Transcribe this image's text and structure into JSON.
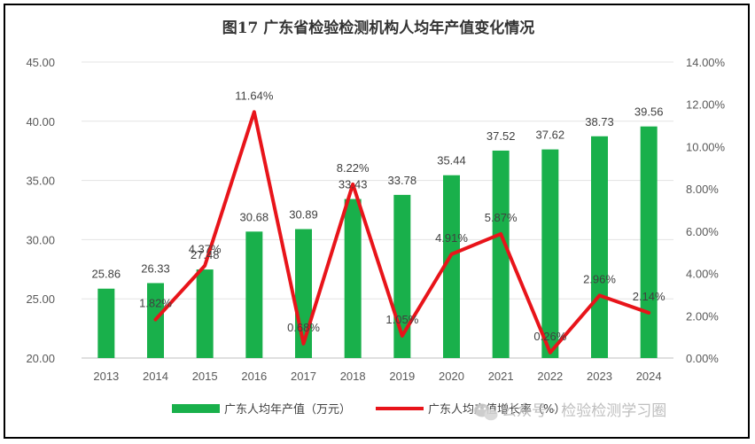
{
  "chart_data": {
    "type": "bar",
    "title": "图17  广东省检验检测机构人均年产值变化情况",
    "categories": [
      "2013",
      "2014",
      "2015",
      "2016",
      "2017",
      "2018",
      "2019",
      "2020",
      "2021",
      "2022",
      "2023",
      "2024"
    ],
    "series": [
      {
        "name": "广东人均年产值（万元）",
        "type": "bar",
        "axis": "left",
        "color": "#19b04b",
        "values": [
          25.86,
          26.33,
          27.48,
          30.68,
          30.89,
          33.43,
          33.78,
          35.44,
          37.52,
          37.62,
          38.73,
          39.56
        ],
        "labels": [
          "25.86",
          "26.33",
          "27.48",
          "30.68",
          "30.89",
          "33.43",
          "33.78",
          "35.44",
          "37.52",
          "37.62",
          "38.73",
          "39.56"
        ]
      },
      {
        "name": "广东人均产值增长率（%）",
        "type": "line",
        "axis": "right",
        "color": "#e8141a",
        "values": [
          null,
          1.82,
          4.37,
          11.64,
          0.68,
          8.22,
          1.05,
          4.91,
          5.87,
          0.26,
          2.96,
          2.14
        ],
        "labels": [
          "",
          "1.82%",
          "4.37%",
          "11.64%",
          "0.68%",
          "8.22%",
          "1.05%",
          "4.91%",
          "5.87%",
          "0.26%",
          "2.96%",
          "2.14%"
        ]
      }
    ],
    "y_left": {
      "min": 20,
      "max": 45,
      "ticks": [
        "20.00",
        "25.00",
        "30.00",
        "35.00",
        "40.00",
        "45.00"
      ]
    },
    "y_right": {
      "min": 0,
      "max": 14,
      "ticks": [
        "0.00%",
        "2.00%",
        "4.00%",
        "6.00%",
        "8.00%",
        "10.00%",
        "12.00%",
        "14.00%"
      ]
    },
    "grid": true,
    "legend_position": "bottom"
  },
  "watermark": {
    "text": "公众号 · 检验检测学习圈",
    "icon": "wechat-icon"
  }
}
